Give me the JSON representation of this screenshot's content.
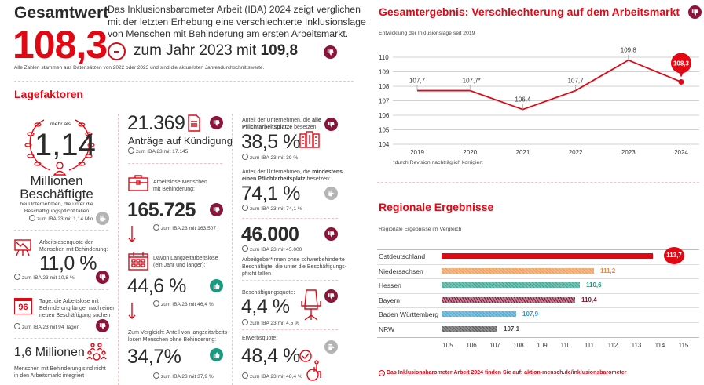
{
  "header": {
    "title": "Gesamtwert",
    "value": "108,3",
    "intro": [
      "Das Inklusionsbarometer Arbeit (IBA) 2024 zeigt verglichen",
      "mit der letzten Erhebung eine verschlechterte Inklusionslage",
      "von Menschen mit Behinderung am ersten Arbeitsmarkt."
    ],
    "comparison_text": "zum Jahr 2023 mit",
    "comparison_value": "109,8",
    "trend": "down",
    "footnote": "Alle Zahlen stammen aus Datensätzen von 2022 oder 2023 und sind die aktuellsten Jahresdurchschnittswerte."
  },
  "lagefaktoren": {
    "title": "Lagefaktoren",
    "employed": {
      "prefix": "mehr als",
      "value": "1,14",
      "unit1": "Millionen",
      "unit2": "Beschäftigte",
      "desc": [
        "bei Unternehmen, die unter die",
        "Beschäftigungspflicht fallen"
      ],
      "cmp": "zum IBA 23 mit 1,14 Mio.",
      "trend": "neutral"
    },
    "quote": {
      "label": [
        "Arbeitslosenquote der",
        "Menschen mit Behinderung:"
      ],
      "value": "11,0 %",
      "cmp": "zum IBA 23 mit 10,8 %",
      "trend": "down"
    },
    "days": {
      "icon_value": "96",
      "label": [
        "Tage, die Arbeitslose mit",
        "Behinderung länger nach einer",
        "neuen Beschäftigung suchen"
      ],
      "cmp": "zum IBA 23 mit 94 Tagen",
      "trend": "down"
    },
    "not_integrated": {
      "value": "1,6 Millionen",
      "desc": [
        "Menschen mit Behinderung sind nicht",
        "in den Arbeitsmarkt integriert"
      ]
    },
    "kuendigung": {
      "value": "21.369",
      "label": "Anträge auf Kündigung",
      "cmp": "zum IBA 23 mit 17.145",
      "trend": "down"
    },
    "arbeitslose": {
      "label": [
        "Arbeitslose Menschen",
        "mit Behinderung:"
      ],
      "value": "165.725",
      "cmp": "zum IBA 23 mit 163.507",
      "trend": "down"
    },
    "langzeit": {
      "label": [
        "Davon Langzeitarbeitslose",
        "(ein Jahr und länger):"
      ],
      "value": "44,6 %",
      "cmp": "zum IBA 23 mit 46,4 %",
      "trend": "up"
    },
    "vergleich": {
      "label": [
        "Zum Vergleich: Anteil von langzeitarbeits-",
        "losen Menschen ohne Behinderung:"
      ],
      "value": "34,7%",
      "cmp": "zum IBA 23 mit 37,9 %",
      "trend": "up"
    },
    "alle": {
      "label_pre": "Anteil der Unternehmen, die ",
      "label_bold": "alle",
      "label_bold2": "Pflichtarbeitsplätze",
      "label_post": " besetzen:",
      "value": "38,5 %",
      "cmp": "zum IBA 23 mit 39 %",
      "trend": "down"
    },
    "mindestens": {
      "label_pre": "Anteil der Unternehmen, die ",
      "label_bold": "mindestens",
      "label_bold2": "einen Pflichtarbeitsplatz",
      "label_post": " besetzen:",
      "value": "74,1 %",
      "cmp": "zum IBA 23 mit 74,1 %",
      "trend": "neutral"
    },
    "arbeitgeber": {
      "value": "46.000",
      "cmp": "zum IBA 23 mit 45.000",
      "desc": [
        "Arbeitgeber*innen ohne schwerbehinderte",
        "Beschäftigte, die unter die Beschäftigungs-",
        "pflicht fallen"
      ],
      "trend": "down"
    },
    "beschaeftigungsquote": {
      "label": "Beschäftigungsquote:",
      "value": "4,4 %",
      "cmp": "zum IBA 23 mit 4,5 %",
      "trend": "down"
    },
    "erwerbsquote": {
      "label": "Erwerbsquote:",
      "value": "48,4 %",
      "cmp": "zum IBA 23 mit 48,4 %",
      "trend": "neutral"
    }
  },
  "footer_link": "Das Inklusionsbarometer Arbeit 2024 finden Sie auf: aktion-mensch.de/inklusionsbarometer",
  "chart_data": [
    {
      "type": "line",
      "title": "Gesamtergebnis: Verschlechterung auf dem Arbeitsmarkt",
      "subtitle": "Entwicklung der Inklusionslage seit 2019",
      "x": [
        "2019",
        "2020",
        "2021",
        "2022",
        "2023",
        "2024"
      ],
      "values": [
        107.7,
        107.7,
        106.4,
        107.7,
        109.8,
        108.3
      ],
      "labels": [
        "107,7",
        "107,7*",
        "106,4",
        "107,7",
        "109,8",
        "108,3"
      ],
      "ylim": [
        104,
        110
      ],
      "yticks": [
        "104",
        "105",
        "106",
        "107",
        "108",
        "109",
        "110"
      ],
      "grid": true,
      "highlight_last": true,
      "color": "#e30613",
      "footnote": "*durch Revision nachträglich korrigiert",
      "trend": "down"
    },
    {
      "type": "bar",
      "orientation": "horizontal",
      "title": "Regionale Ergebnisse",
      "subtitle": "Regionale Ergebnisse im Vergleich",
      "categories": [
        "Ostdeutschland",
        "Niedersachsen",
        "Hessen",
        "Bayern",
        "Baden Württemberg",
        "NRW"
      ],
      "values": [
        113.7,
        111.2,
        110.6,
        110.4,
        107.9,
        107.1
      ],
      "labels": [
        "113,7",
        "111,2",
        "110,6",
        "110,4",
        "107,9",
        "107,1"
      ],
      "colors": [
        "#e30613",
        "#f08a3c",
        "#1a9a80",
        "#8b1538",
        "#2a9bd0",
        "#444444"
      ],
      "xlim": [
        105,
        115
      ],
      "xticks": [
        "105",
        "106",
        "107",
        "108",
        "109",
        "110",
        "111",
        "112",
        "113",
        "114",
        "115"
      ]
    }
  ]
}
